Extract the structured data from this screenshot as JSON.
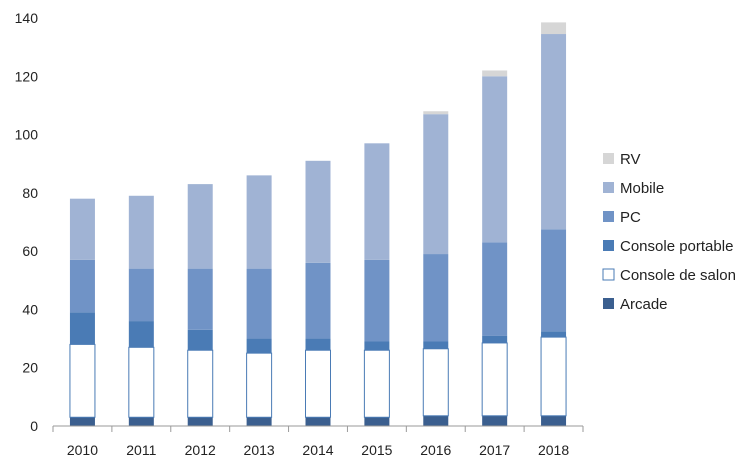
{
  "chart_data": {
    "type": "bar",
    "stacked": true,
    "categories": [
      "2010",
      "2011",
      "2012",
      "2013",
      "2014",
      "2015",
      "2016",
      "2017",
      "2018"
    ],
    "ylim": [
      0,
      140
    ],
    "yticks": [
      0,
      20,
      40,
      60,
      80,
      100,
      120,
      140
    ],
    "grid": false,
    "legend_position": "right",
    "series": [
      {
        "name": "Arcade",
        "color": "#3b5f8f",
        "values": [
          3,
          3,
          3,
          3,
          3,
          3,
          3.5,
          3.5,
          3.5
        ]
      },
      {
        "name": "Console de salon",
        "color": "#ffffff",
        "values": [
          25,
          24,
          23,
          22,
          23,
          23,
          23,
          25,
          27
        ]
      },
      {
        "name": "Console portable",
        "color": "#4a7bb5",
        "values": [
          11,
          9,
          7,
          5,
          4,
          3,
          2.5,
          2.5,
          2
        ]
      },
      {
        "name": "PC",
        "color": "#7093c6",
        "values": [
          18,
          18,
          21,
          24,
          26,
          28,
          30,
          32,
          35
        ]
      },
      {
        "name": "Mobile",
        "color": "#a0b3d4",
        "values": [
          21,
          25,
          29,
          32,
          35,
          40,
          48,
          57,
          67
        ]
      },
      {
        "name": "RV",
        "color": "#d6d6d6",
        "values": [
          0,
          0,
          0,
          0,
          0,
          0,
          1,
          2,
          4
        ]
      }
    ]
  }
}
